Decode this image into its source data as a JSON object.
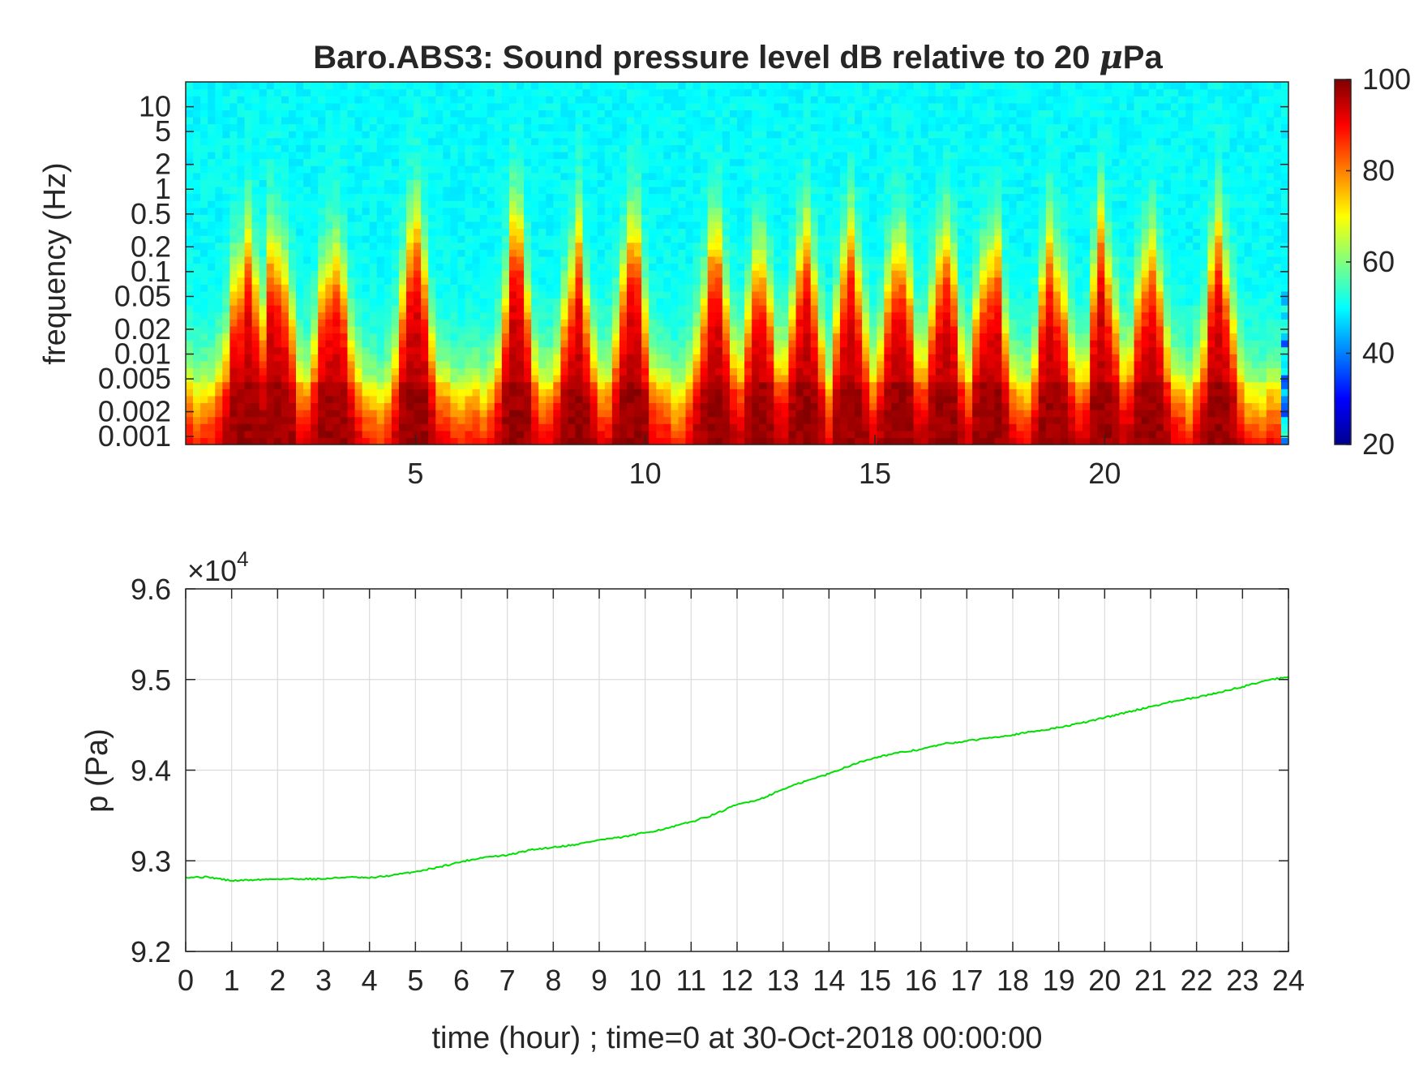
{
  "chart_data": [
    {
      "type": "heatmap",
      "title": "Baro.ABS3: Sound pressure level dB relative to 20 μPa",
      "title_prefix": "Baro.ABS3: Sound pressure level dB relative to 20 ",
      "title_mu": "μ",
      "title_suffix": "Pa",
      "xlabel": "",
      "ylabel": "frequency (Hz)",
      "y_scale": "log",
      "xlim": [
        0,
        24
      ],
      "ylim": [
        0.0008,
        20
      ],
      "x_ticks": [
        5,
        10,
        15,
        20
      ],
      "x_tick_labels": [
        "5",
        "10",
        "15",
        "20"
      ],
      "y_ticks": [
        0.001,
        0.002,
        0.005,
        0.01,
        0.02,
        0.05,
        0.1,
        0.2,
        0.5,
        1,
        2,
        5,
        10
      ],
      "y_tick_labels": [
        "0.001",
        "0.002",
        "0.005",
        "0.01",
        "0.02",
        "0.05",
        "0.1",
        "0.2",
        "0.5",
        "1",
        "2",
        "5",
        "10"
      ],
      "colormap": "jet",
      "colorbar": {
        "range": [
          20,
          100
        ],
        "ticks": [
          20,
          40,
          60,
          80,
          100
        ],
        "tick_labels": [
          "20",
          "40",
          "60",
          "80",
          "100"
        ]
      },
      "description_values": {
        "high_freq_level_dB": 50,
        "low_freq_level_dB": 95,
        "burst_hours": [
          1.3,
          2.0,
          3.2,
          5.0,
          7.2,
          8.5,
          9.7,
          11.5,
          12.5,
          13.5,
          14.5,
          15.5,
          16.5,
          17.5,
          18.9,
          20.0,
          21.0,
          22.5
        ]
      }
    },
    {
      "type": "line",
      "title": "",
      "xlabel": "time (hour) ; time=0 at 30-Oct-2018 00:00:00",
      "ylabel": "p (Pa)",
      "y_multiplier_label_base": "×10",
      "y_multiplier_label_exp": "4",
      "xlim": [
        0,
        24
      ],
      "ylim": [
        92000,
        96000
      ],
      "grid": true,
      "x_ticks": [
        0,
        1,
        2,
        3,
        4,
        5,
        6,
        7,
        8,
        9,
        10,
        11,
        12,
        13,
        14,
        15,
        16,
        17,
        18,
        19,
        20,
        21,
        22,
        23,
        24
      ],
      "x_tick_labels": [
        "0",
        "1",
        "2",
        "3",
        "4",
        "5",
        "6",
        "7",
        "8",
        "9",
        "10",
        "11",
        "12",
        "13",
        "14",
        "15",
        "16",
        "17",
        "18",
        "19",
        "20",
        "21",
        "22",
        "23",
        "24"
      ],
      "y_ticks": [
        92000,
        93000,
        94000,
        95000,
        96000
      ],
      "y_tick_labels": [
        "9.2",
        "9.3",
        "9.4",
        "9.5",
        "9.6"
      ],
      "series": [
        {
          "name": "",
          "color": "#00e000",
          "x": [
            0,
            0.5,
            1,
            1.5,
            2,
            2.5,
            3,
            3.5,
            4,
            4.5,
            5,
            5.5,
            6,
            6.5,
            7,
            7.5,
            8,
            8.5,
            9,
            9.5,
            10,
            10.5,
            11,
            11.5,
            12,
            12.5,
            13,
            13.5,
            14,
            14.5,
            15,
            15.5,
            16,
            16.5,
            17,
            17.5,
            18,
            18.5,
            19,
            19.5,
            20,
            20.5,
            21,
            21.5,
            22,
            22.5,
            23,
            23.5,
            24
          ],
          "y": [
            92820,
            92820,
            92780,
            92790,
            92800,
            92800,
            92800,
            92820,
            92810,
            92840,
            92880,
            92930,
            92990,
            93040,
            93060,
            93120,
            93150,
            93180,
            93230,
            93260,
            93310,
            93360,
            93430,
            93510,
            93620,
            93680,
            93790,
            93880,
            93960,
            94060,
            94140,
            94190,
            94230,
            94290,
            94320,
            94360,
            94390,
            94430,
            94470,
            94520,
            94580,
            94640,
            94700,
            94760,
            94800,
            94860,
            94920,
            94990,
            95030
          ]
        }
      ]
    }
  ]
}
